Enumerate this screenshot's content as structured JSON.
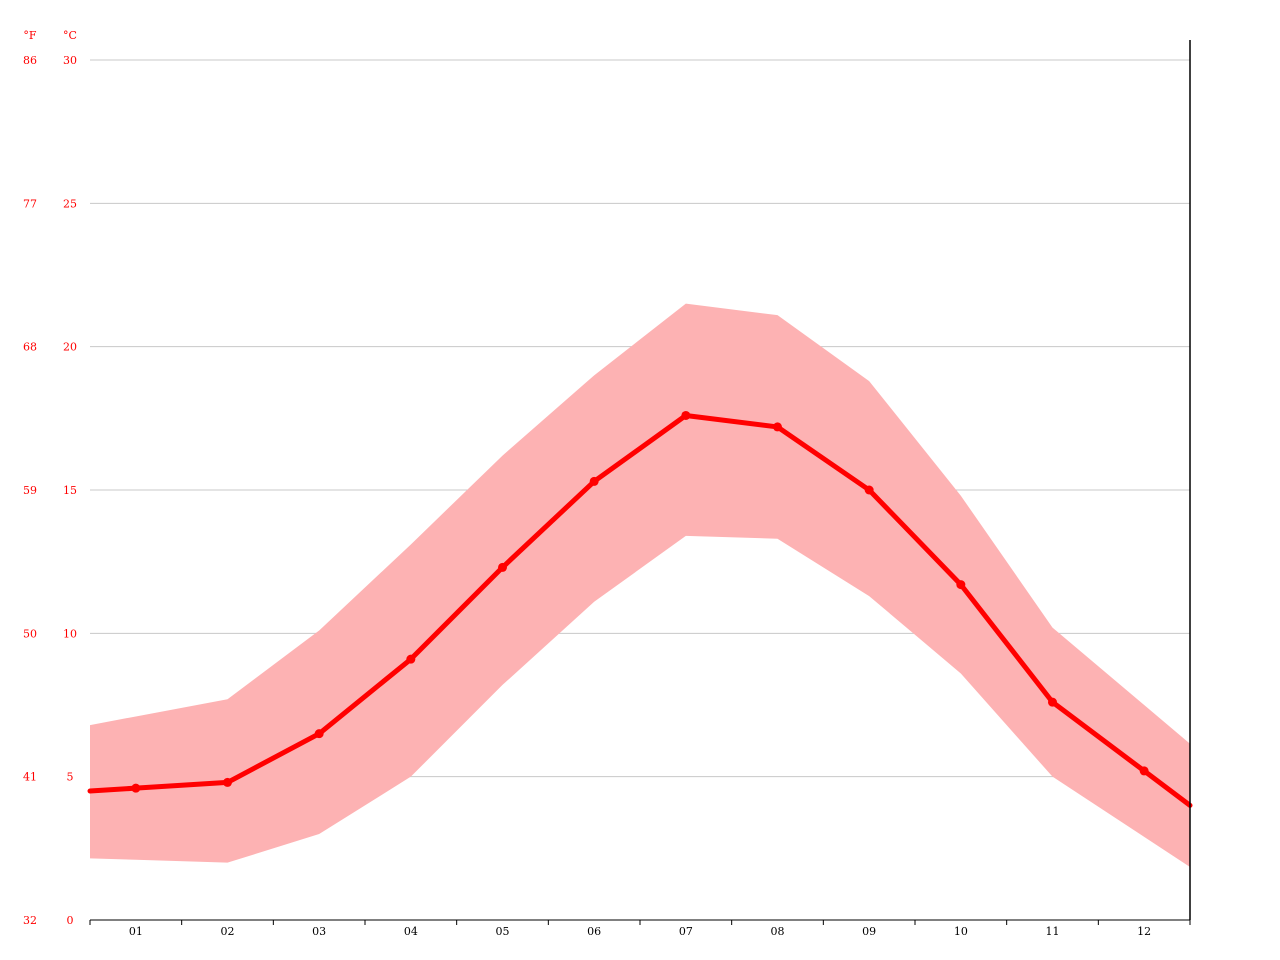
{
  "chart_data": {
    "type": "line",
    "title": "",
    "xlabel": "",
    "ylabel": "",
    "categories": [
      "01",
      "02",
      "03",
      "04",
      "05",
      "06",
      "07",
      "08",
      "09",
      "10",
      "11",
      "12"
    ],
    "series": [
      {
        "values": [
          4.6,
          4.8,
          6.5,
          9.1,
          12.3,
          15.3,
          17.6,
          17.2,
          15.0,
          11.7,
          7.6,
          5.2
        ]
      }
    ],
    "band": {
      "upper": [
        7.1,
        7.7,
        10.1,
        13.1,
        16.2,
        19.0,
        21.5,
        21.1,
        18.8,
        14.8,
        10.2,
        7.5
      ],
      "lower": [
        2.1,
        2.0,
        3.0,
        5.0,
        8.2,
        11.1,
        13.4,
        13.3,
        11.3,
        8.6,
        5.0,
        2.9
      ]
    },
    "ylim": [
      0,
      30
    ],
    "yticks_c": [
      "0",
      "5",
      "10",
      "15",
      "20",
      "25",
      "30"
    ],
    "yticks_f": [
      "32",
      "41",
      "50",
      "59",
      "68",
      "77",
      "86"
    ],
    "unit_f": "°F",
    "unit_c": "°C",
    "grid": true,
    "colors": {
      "line": "#ff0000",
      "band": "#fdb2b3",
      "grid": "#c8c8c8",
      "axis_text": "#ff0000",
      "axis": "#000000"
    }
  }
}
